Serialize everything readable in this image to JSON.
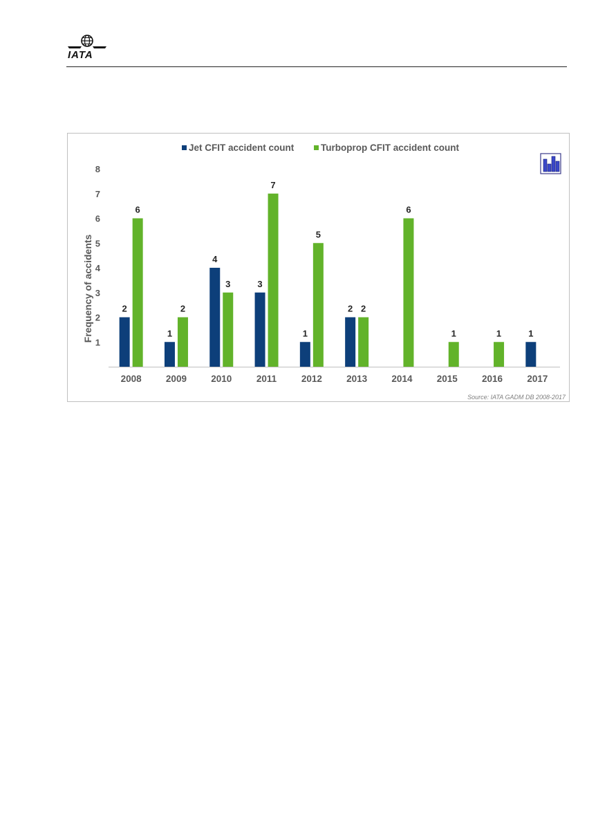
{
  "page": {
    "logo_text": "IATA"
  },
  "colors": {
    "jet": "#0d3f7a",
    "turboprop": "#62b32a",
    "axis_text": "#595959",
    "label_text": "#262626",
    "axis_line": "#bfbfbf"
  },
  "chart_data": {
    "type": "bar",
    "title": "",
    "xlabel": "",
    "ylabel": "Frequency of accidents",
    "categories": [
      "2008",
      "2009",
      "2010",
      "2011",
      "2012",
      "2013",
      "2014",
      "2015",
      "2016",
      "2017"
    ],
    "series": [
      {
        "name": "Jet CFIT accident count",
        "values": [
          2,
          1,
          4,
          3,
          1,
          2,
          0,
          0,
          0,
          1
        ],
        "color": "#0d3f7a"
      },
      {
        "name": "Turboprop CFIT accident count",
        "values": [
          6,
          2,
          3,
          7,
          5,
          2,
          6,
          1,
          1,
          0
        ],
        "color": "#62b32a"
      }
    ],
    "ylim": [
      0,
      8
    ],
    "yticks": [
      "1",
      "2",
      "3",
      "4",
      "5",
      "6",
      "7",
      "8"
    ],
    "legend_position": "top",
    "grid": false,
    "source_note": "Source: IATA GADM DB 2008-2017",
    "icon": "bar-chart-icon"
  }
}
